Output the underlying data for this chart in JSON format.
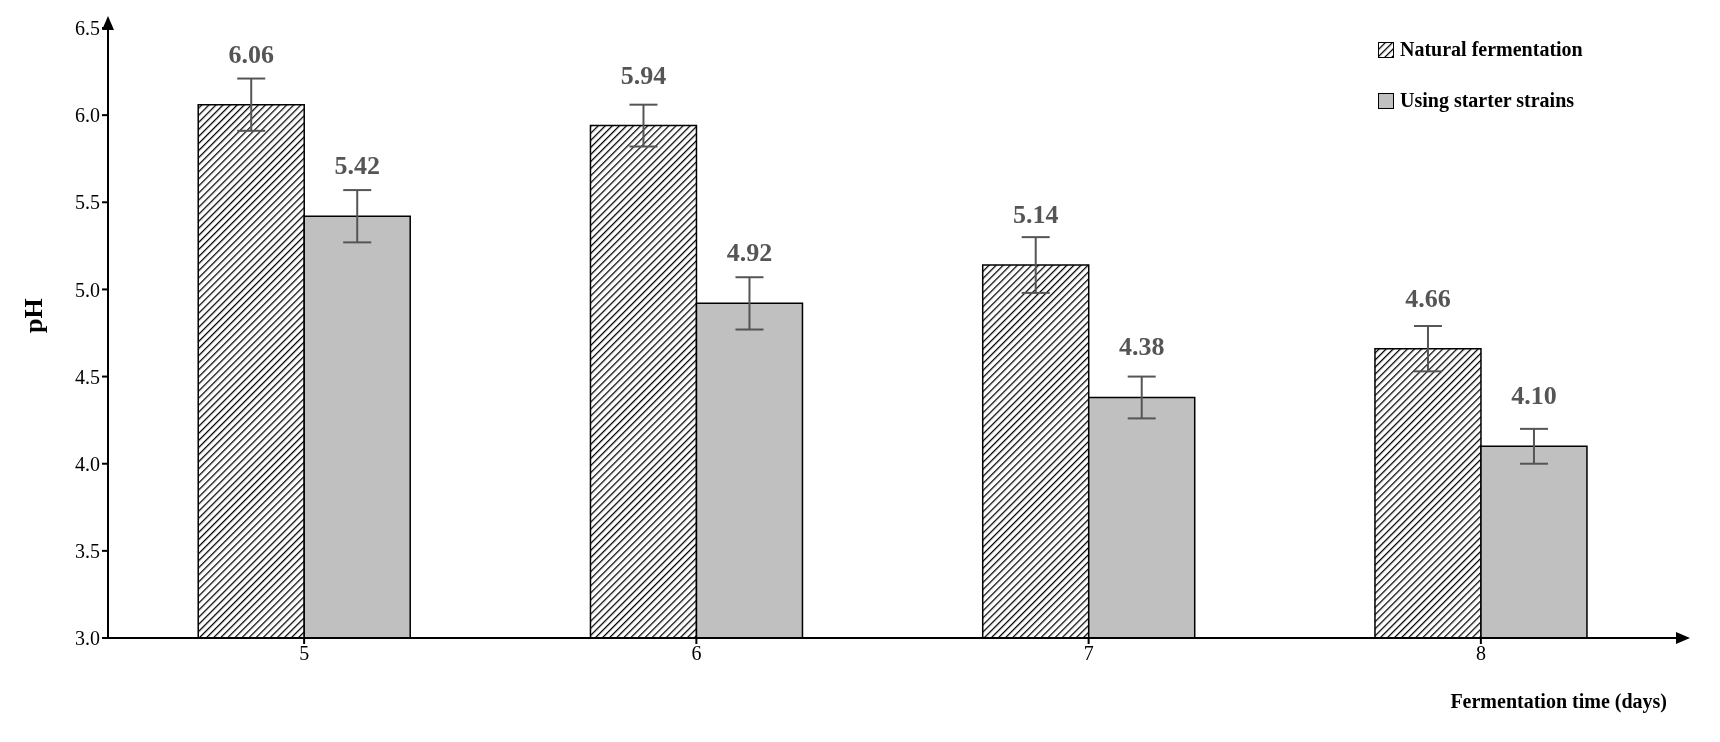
{
  "chart_data": {
    "type": "bar",
    "xlabel": "Fermentation time (days)",
    "ylabel": "pH",
    "categories": [
      "5",
      "6",
      "7",
      "8"
    ],
    "series": [
      {
        "name": "Natural fermentation",
        "color": "#000000",
        "values": [
          6.06,
          5.94,
          5.14,
          4.66
        ],
        "errors": [
          0.15,
          0.12,
          0.16,
          0.13
        ],
        "value_labels": [
          "6.06",
          "5.94",
          "5.14",
          "4.66"
        ]
      },
      {
        "name": "Using starter strains",
        "color": "#c0c0c0",
        "values": [
          5.42,
          4.92,
          4.38,
          4.1
        ],
        "errors": [
          0.15,
          0.15,
          0.12,
          0.1
        ],
        "value_labels": [
          "5.42",
          "4.92",
          "4.38",
          "4.10"
        ]
      }
    ],
    "ylim": [
      3.0,
      6.5
    ],
    "yticks": [
      {
        "value": 3.0,
        "label": "3.0"
      },
      {
        "value": 3.5,
        "label": "3.5"
      },
      {
        "value": 4.0,
        "label": "4.0"
      },
      {
        "value": 4.5,
        "label": "4.5"
      },
      {
        "value": 5.0,
        "label": "5.0"
      },
      {
        "value": 5.5,
        "label": "5.5"
      },
      {
        "value": 6.0,
        "label": "6.0"
      },
      {
        "value": 6.5,
        "label": "6.5"
      }
    ],
    "legend": "top right"
  }
}
